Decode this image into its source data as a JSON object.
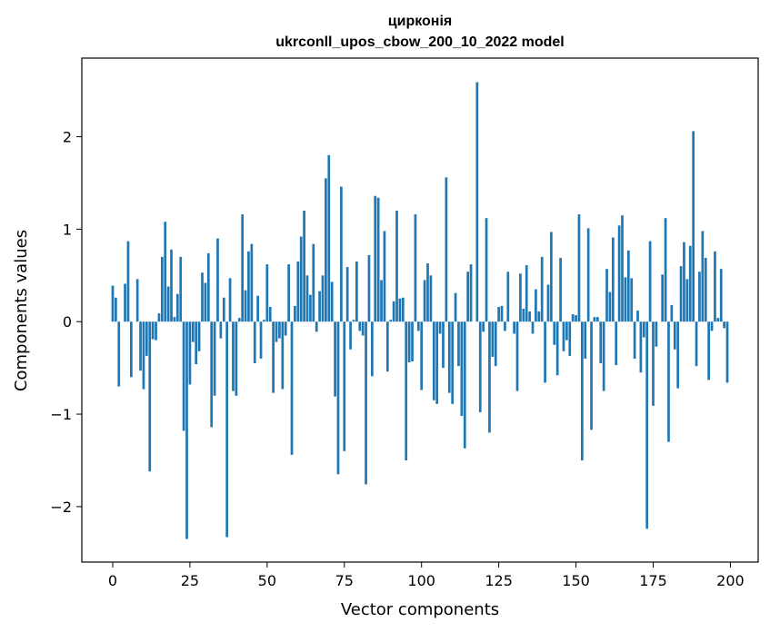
{
  "chart_data": {
    "type": "bar",
    "title": "цирконія",
    "subtitle": "ukrconll_upos_cbow_200_10_2022 model",
    "xlabel": "Vector components",
    "ylabel": "Components values",
    "xlim": [
      -10,
      209
    ],
    "ylim": [
      -2.6,
      2.85
    ],
    "xticks": [
      0,
      25,
      50,
      75,
      100,
      125,
      150,
      175,
      200
    ],
    "yticks": [
      -2,
      -1,
      0,
      1,
      2
    ],
    "ytick_labels": [
      "−2",
      "−1",
      "0",
      "1",
      "2"
    ],
    "grid": false,
    "color": "#1f77b4",
    "values": [
      0.39,
      0.26,
      -0.7,
      0.0,
      0.41,
      0.87,
      -0.6,
      0.0,
      0.46,
      -0.53,
      -0.73,
      -0.37,
      -1.62,
      -0.19,
      -0.2,
      0.09,
      0.7,
      1.08,
      0.38,
      0.78,
      0.05,
      0.3,
      0.7,
      -1.18,
      -2.35,
      -0.68,
      -0.22,
      -0.46,
      -0.32,
      0.53,
      0.42,
      0.74,
      -1.14,
      -0.8,
      0.9,
      -0.18,
      0.26,
      -2.33,
      0.47,
      -0.75,
      -0.8,
      0.04,
      1.16,
      0.34,
      0.76,
      0.84,
      -0.45,
      0.28,
      -0.4,
      0.02,
      0.62,
      0.16,
      -0.77,
      -0.22,
      -0.18,
      -0.73,
      -0.15,
      0.62,
      -1.44,
      0.17,
      0.65,
      0.92,
      1.2,
      0.5,
      0.29,
      0.84,
      -0.11,
      0.33,
      0.5,
      1.55,
      1.8,
      0.43,
      -0.81,
      -1.65,
      1.46,
      -1.4,
      0.59,
      -0.3,
      0.02,
      0.65,
      -0.1,
      -0.15,
      -1.76,
      0.72,
      -0.59,
      1.36,
      1.34,
      0.45,
      0.98,
      -0.54,
      0.02,
      0.22,
      1.2,
      0.25,
      0.26,
      -1.5,
      -0.44,
      -0.43,
      1.16,
      -0.1,
      -0.74,
      0.45,
      0.63,
      0.5,
      -0.85,
      -0.89,
      -0.13,
      -0.5,
      1.56,
      -0.77,
      -0.89,
      0.31,
      -0.48,
      -1.02,
      -1.37,
      0.54,
      0.62,
      0.0,
      2.59,
      -0.98,
      -0.11,
      1.12,
      -1.2,
      -0.38,
      -0.48,
      0.16,
      0.17,
      -0.1,
      0.54,
      0.0,
      -0.13,
      -0.75,
      0.52,
      0.14,
      0.61,
      0.11,
      -0.13,
      0.35,
      0.11,
      0.7,
      -0.66,
      0.4,
      0.97,
      -0.25,
      -0.58,
      0.69,
      -0.32,
      -0.2,
      -0.37,
      0.08,
      0.07,
      1.16,
      -1.5,
      -0.4,
      1.01,
      -1.17,
      0.05,
      0.05,
      -0.45,
      -0.75,
      0.57,
      0.32,
      0.91,
      -0.47,
      1.04,
      1.15,
      0.48,
      0.77,
      0.47,
      -0.4,
      0.12,
      -0.55,
      -0.17,
      -2.24,
      0.87,
      -0.91,
      -0.27,
      0.0,
      0.51,
      1.12,
      -1.3,
      0.18,
      -0.3,
      -0.72,
      0.6,
      0.86,
      0.46,
      0.82,
      2.06,
      -0.48,
      0.54,
      0.98,
      0.69,
      -0.63,
      -0.1,
      0.76,
      0.04,
      0.57,
      -0.07,
      -0.66
    ]
  }
}
